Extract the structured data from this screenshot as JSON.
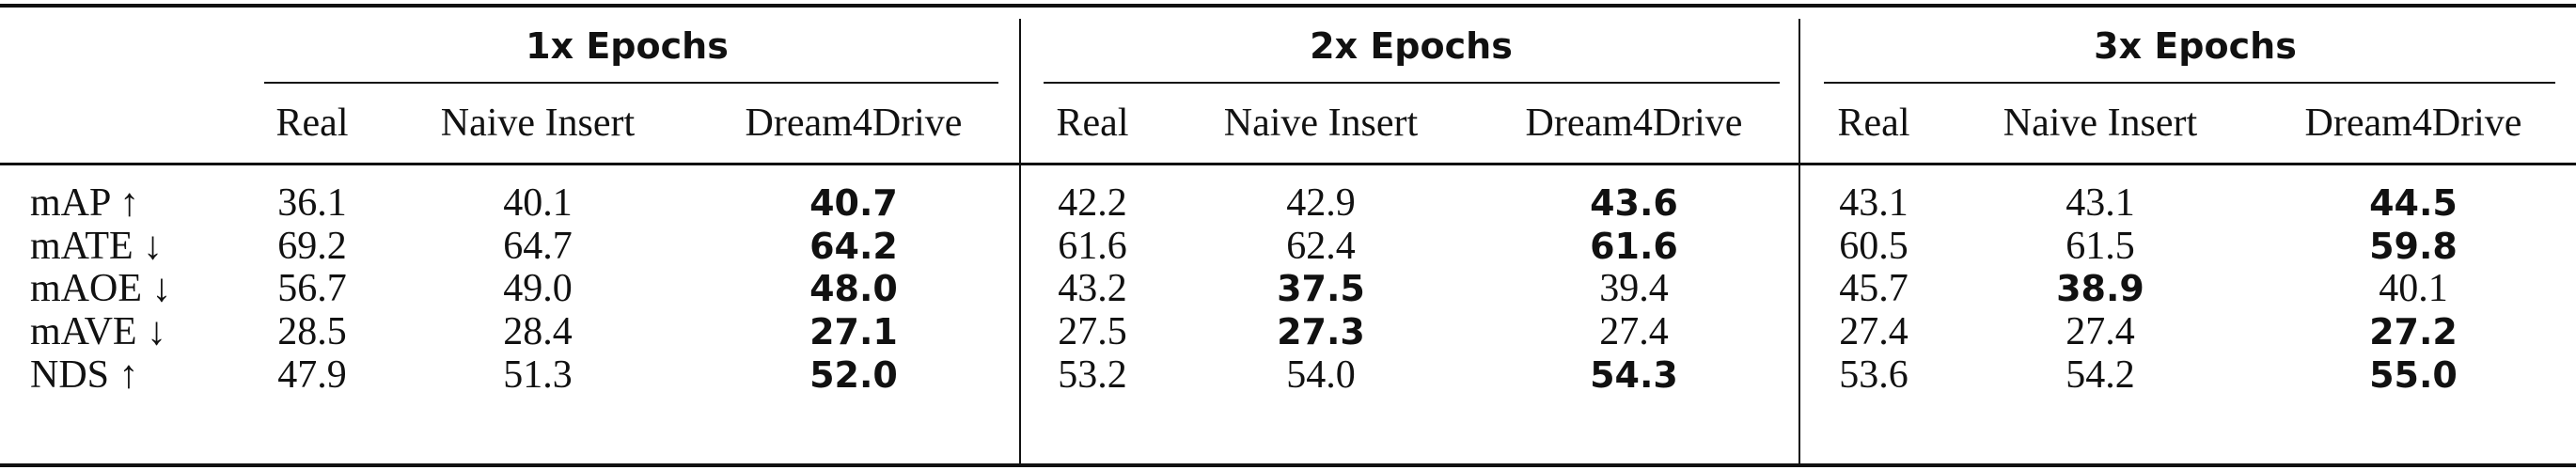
{
  "table": {
    "groups": [
      "1x Epochs",
      "2x Epochs",
      "3x Epochs"
    ],
    "columns": [
      "Real",
      "Naive Insert",
      "Dream4Drive",
      "Real",
      "Naive Insert",
      "Dream4Drive",
      "Real",
      "Naive Insert",
      "Dream4Drive"
    ],
    "rows": [
      {
        "label": "mAP ↑",
        "cells": [
          "36.1",
          "40.1",
          "40.7",
          "42.2",
          "42.9",
          "43.6",
          "43.1",
          "43.1",
          "44.5"
        ],
        "bold": [
          2,
          5,
          8
        ]
      },
      {
        "label": "mATE ↓",
        "cells": [
          "69.2",
          "64.7",
          "64.2",
          "61.6",
          "62.4",
          "61.6",
          "60.5",
          "61.5",
          "59.8"
        ],
        "bold": [
          2,
          5,
          8
        ]
      },
      {
        "label": "mAOE ↓",
        "cells": [
          "56.7",
          "49.0",
          "48.0",
          "43.2",
          "37.5",
          "39.4",
          "45.7",
          "38.9",
          "40.1"
        ],
        "bold": [
          2,
          4,
          7
        ]
      },
      {
        "label": "mAVE ↓",
        "cells": [
          "28.5",
          "28.4",
          "27.1",
          "27.5",
          "27.3",
          "27.4",
          "27.4",
          "27.4",
          "27.2"
        ],
        "bold": [
          2,
          4,
          8
        ]
      },
      {
        "label": "NDS ↑",
        "cells": [
          "47.9",
          "51.3",
          "52.0",
          "53.2",
          "54.0",
          "54.3",
          "53.6",
          "54.2",
          "55.0"
        ],
        "bold": [
          2,
          5,
          8
        ]
      }
    ]
  }
}
